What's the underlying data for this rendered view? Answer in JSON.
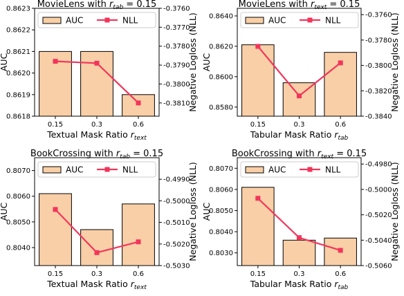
{
  "chart_data": [
    {
      "type": "bar",
      "title": {
        "main": "MovieLens with ",
        "var": "r",
        "sub": "tab",
        "tail": " = 0.15"
      },
      "xlabel": {
        "main": "Textual Mask Ratio ",
        "var": "r",
        "sub": "text"
      },
      "ylabel": "AUC",
      "y2label": "Negative Logloss (NLL)",
      "categories": [
        "0.15",
        "0.3",
        "0.6"
      ],
      "series": [
        {
          "name": "AUC",
          "axis": "left",
          "values": [
            0.8621,
            0.8621,
            0.8619
          ]
        },
        {
          "name": "NLL",
          "axis": "right",
          "values": [
            -0.3788,
            -0.3789,
            -0.381
          ]
        }
      ],
      "ylim": [
        0.8618,
        0.8623
      ],
      "yticks": [
        "0.8618",
        "0.8619",
        "0.8620",
        "0.8621",
        "0.8622",
        "0.8623"
      ],
      "y2lim": [
        -0.3817,
        -0.376
      ],
      "y2ticks": [
        "-0.3760",
        "-0.3770",
        "-0.3780",
        "-0.3790",
        "-0.3800",
        "-0.3810"
      ],
      "legend": "top",
      "grid": false
    },
    {
      "type": "bar",
      "title": {
        "main": "MovieLens with ",
        "var": "r",
        "sub": "text",
        "tail": " = 0.15"
      },
      "xlabel": {
        "main": "Tabular Mask Ratio ",
        "var": "r",
        "sub": "tab"
      },
      "ylabel": "AUC",
      "y2label": "Negative Logloss (NLL)",
      "categories": [
        "0.15",
        "0.3",
        "0.6"
      ],
      "series": [
        {
          "name": "AUC",
          "axis": "left",
          "values": [
            0.8621,
            0.8596,
            0.8616
          ]
        },
        {
          "name": "NLL",
          "axis": "right",
          "values": [
            -0.3785,
            -0.3824,
            -0.3798
          ]
        }
      ],
      "ylim": [
        0.8574,
        0.8645
      ],
      "yticks": [
        "0.8580",
        "0.8600",
        "0.8620",
        "0.8640"
      ],
      "y2lim": [
        -0.384,
        -0.3755
      ],
      "y2ticks": [
        "-0.3760",
        "-0.3780",
        "-0.3800",
        "-0.3820",
        "-0.3840"
      ],
      "legend": "top",
      "grid": false
    },
    {
      "type": "bar",
      "title": {
        "main": "BookCrossing with ",
        "var": "r",
        "sub": "tab",
        "tail": " = 0.15"
      },
      "xlabel": {
        "main": "Textual Mask Ratio ",
        "var": "r",
        "sub": "text"
      },
      "ylabel": "AUC",
      "y2label": "Negative Logloss (NLL)",
      "categories": [
        "0.15",
        "0.3",
        "0.6"
      ],
      "series": [
        {
          "name": "AUC",
          "axis": "left",
          "values": [
            0.8061,
            0.8047,
            0.8057
          ]
        },
        {
          "name": "NLL",
          "axis": "right",
          "values": [
            -0.5004,
            -0.5024,
            -0.5019
          ]
        }
      ],
      "ylim": [
        0.8033,
        0.8075
      ],
      "yticks": [
        "0.8040",
        "0.8050",
        "0.8060",
        "0.8070"
      ],
      "y2lim": [
        -0.503,
        -0.498
      ],
      "y2ticks": [
        "-0.4990",
        "-0.5000",
        "-0.5010",
        "-0.5020",
        "-0.5030"
      ],
      "legend": "top",
      "grid": false
    },
    {
      "type": "bar",
      "title": {
        "main": "BookCrossing with ",
        "var": "r",
        "sub": "text",
        "tail": " = 0.15"
      },
      "xlabel": {
        "main": "Tabular Mask Ratio ",
        "var": "r",
        "sub": "tab"
      },
      "ylabel": "AUC",
      "y2label": "Negative Logloss (NLL)",
      "categories": [
        "0.15",
        "0.3",
        "0.6"
      ],
      "series": [
        {
          "name": "AUC",
          "axis": "left",
          "values": [
            0.8061,
            0.8036,
            0.8037
          ]
        },
        {
          "name": "NLL",
          "axis": "right",
          "values": [
            -0.5007,
            -0.5038,
            -0.5048
          ]
        }
      ],
      "ylim": [
        0.8024,
        0.8075
      ],
      "yticks": [
        "0.8030",
        "0.8040",
        "0.8050",
        "0.8060",
        "0.8070"
      ],
      "y2lim": [
        -0.506,
        -0.4975
      ],
      "y2ticks": [
        "-0.4980",
        "-0.5000",
        "-0.5020",
        "-0.5040",
        "-0.5060"
      ],
      "legend": "top",
      "grid": false
    }
  ],
  "colors": {
    "bar_fill": "#f9cfa7",
    "bar_edge": "#000000",
    "line": "#f2355b"
  }
}
